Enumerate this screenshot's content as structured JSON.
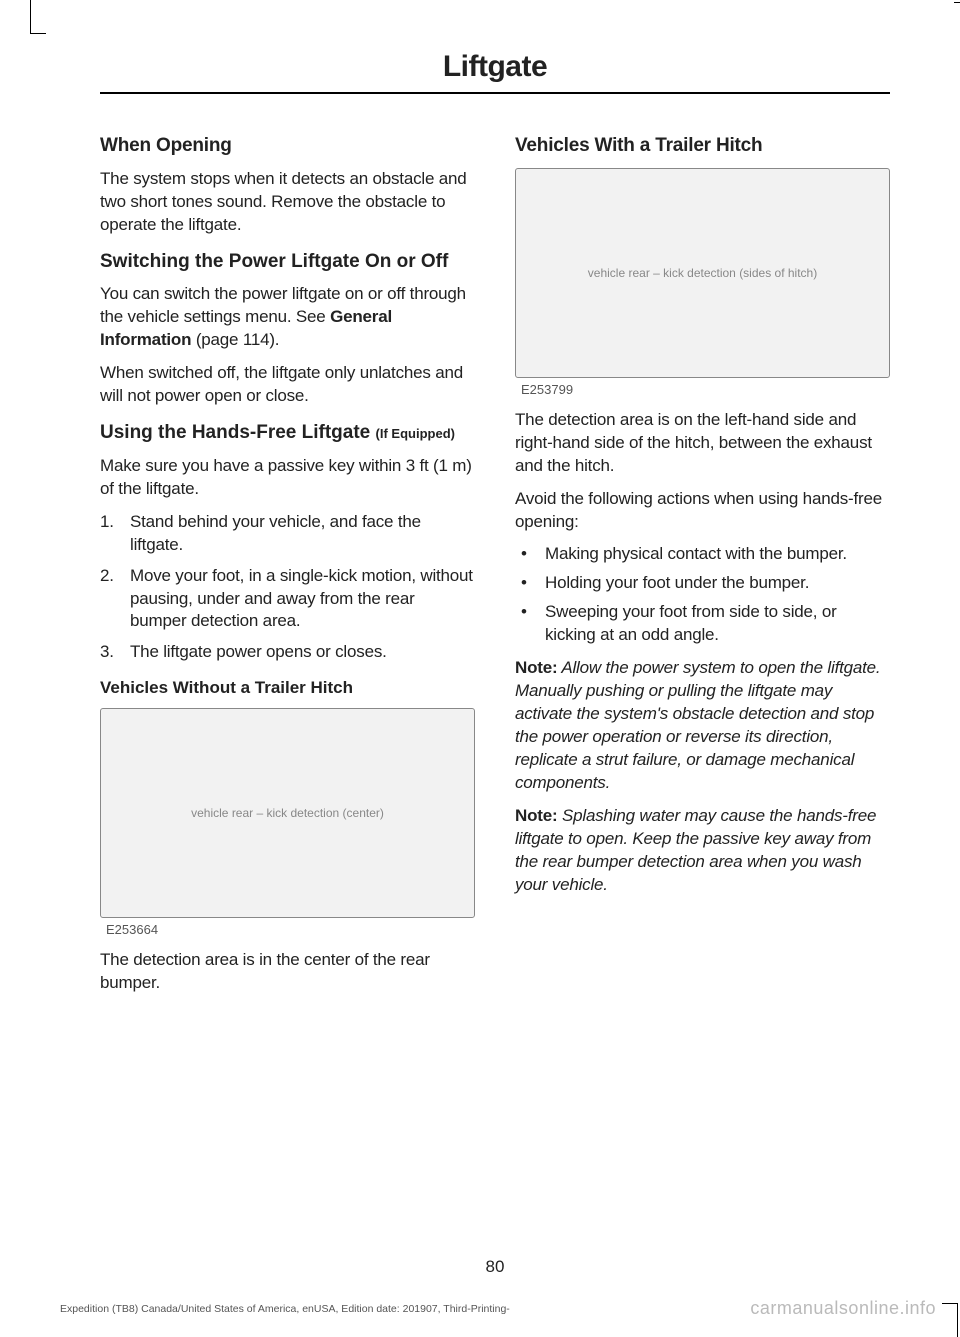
{
  "chapter": "Liftgate",
  "page_number": "80",
  "footer_meta": "Expedition (TB8) Canada/United States of America, enUSA, Edition date: 201907, Third-Printing-",
  "watermark": "carmanualsonline.info",
  "left": {
    "h_when_opening": "When Opening",
    "p_when_opening": "The system stops when it detects an obstacle and two short tones sound. Remove the obstacle to operate the liftgate.",
    "h_switching": "Switching the Power Liftgate On or Off",
    "p_switching_a": "You can switch the power liftgate on or off through the vehicle settings menu.  See ",
    "xref": "General Information",
    "p_switching_b": " (page 114).",
    "p_switching_2": "When switched off, the liftgate only unlatches and will not power open or close.",
    "h_hands_free": "Using the Hands-Free Liftgate ",
    "if_equipped": "(If Equipped)",
    "p_hands_free_intro": "Make sure you have a passive key within 3 ft (1 m) of the liftgate.",
    "steps": [
      "Stand behind your vehicle, and face the liftgate.",
      "Move your foot, in a single-kick motion, without pausing, under and away from the rear bumper detection area.",
      "The liftgate power opens or closes."
    ],
    "h_without_hitch": "Vehicles Without a Trailer Hitch",
    "fig1_code": "E253664",
    "p_without_hitch": "The detection area is in the center of the rear bumper."
  },
  "right": {
    "h_with_hitch": "Vehicles With a Trailer Hitch",
    "fig2_code": "E253799",
    "p_with_hitch": "The detection area is on the left-hand side and right-hand side of the hitch, between the exhaust and the hitch.",
    "p_avoid_intro": "Avoid the following actions when using hands-free opening:",
    "avoid": [
      "Making physical contact with the bumper.",
      "Holding your foot under the bumper.",
      "Sweeping your foot from side to side, or kicking at an odd angle."
    ],
    "note1_label": "Note:",
    "note1": " Allow the power system to open the liftgate. Manually pushing or pulling the liftgate may activate the system's obstacle detection and stop the power operation or reverse its direction, replicate a strut failure, or damage mechanical components.",
    "note2_label": "Note:",
    "note2": "  Splashing water may cause the hands-free liftgate to open.  Keep the passive key away from the rear bumper detection area when you wash your vehicle."
  },
  "fig_placeholder_1": "vehicle rear – kick detection (center)",
  "fig_placeholder_2": "vehicle rear – kick detection (sides of hitch)"
}
